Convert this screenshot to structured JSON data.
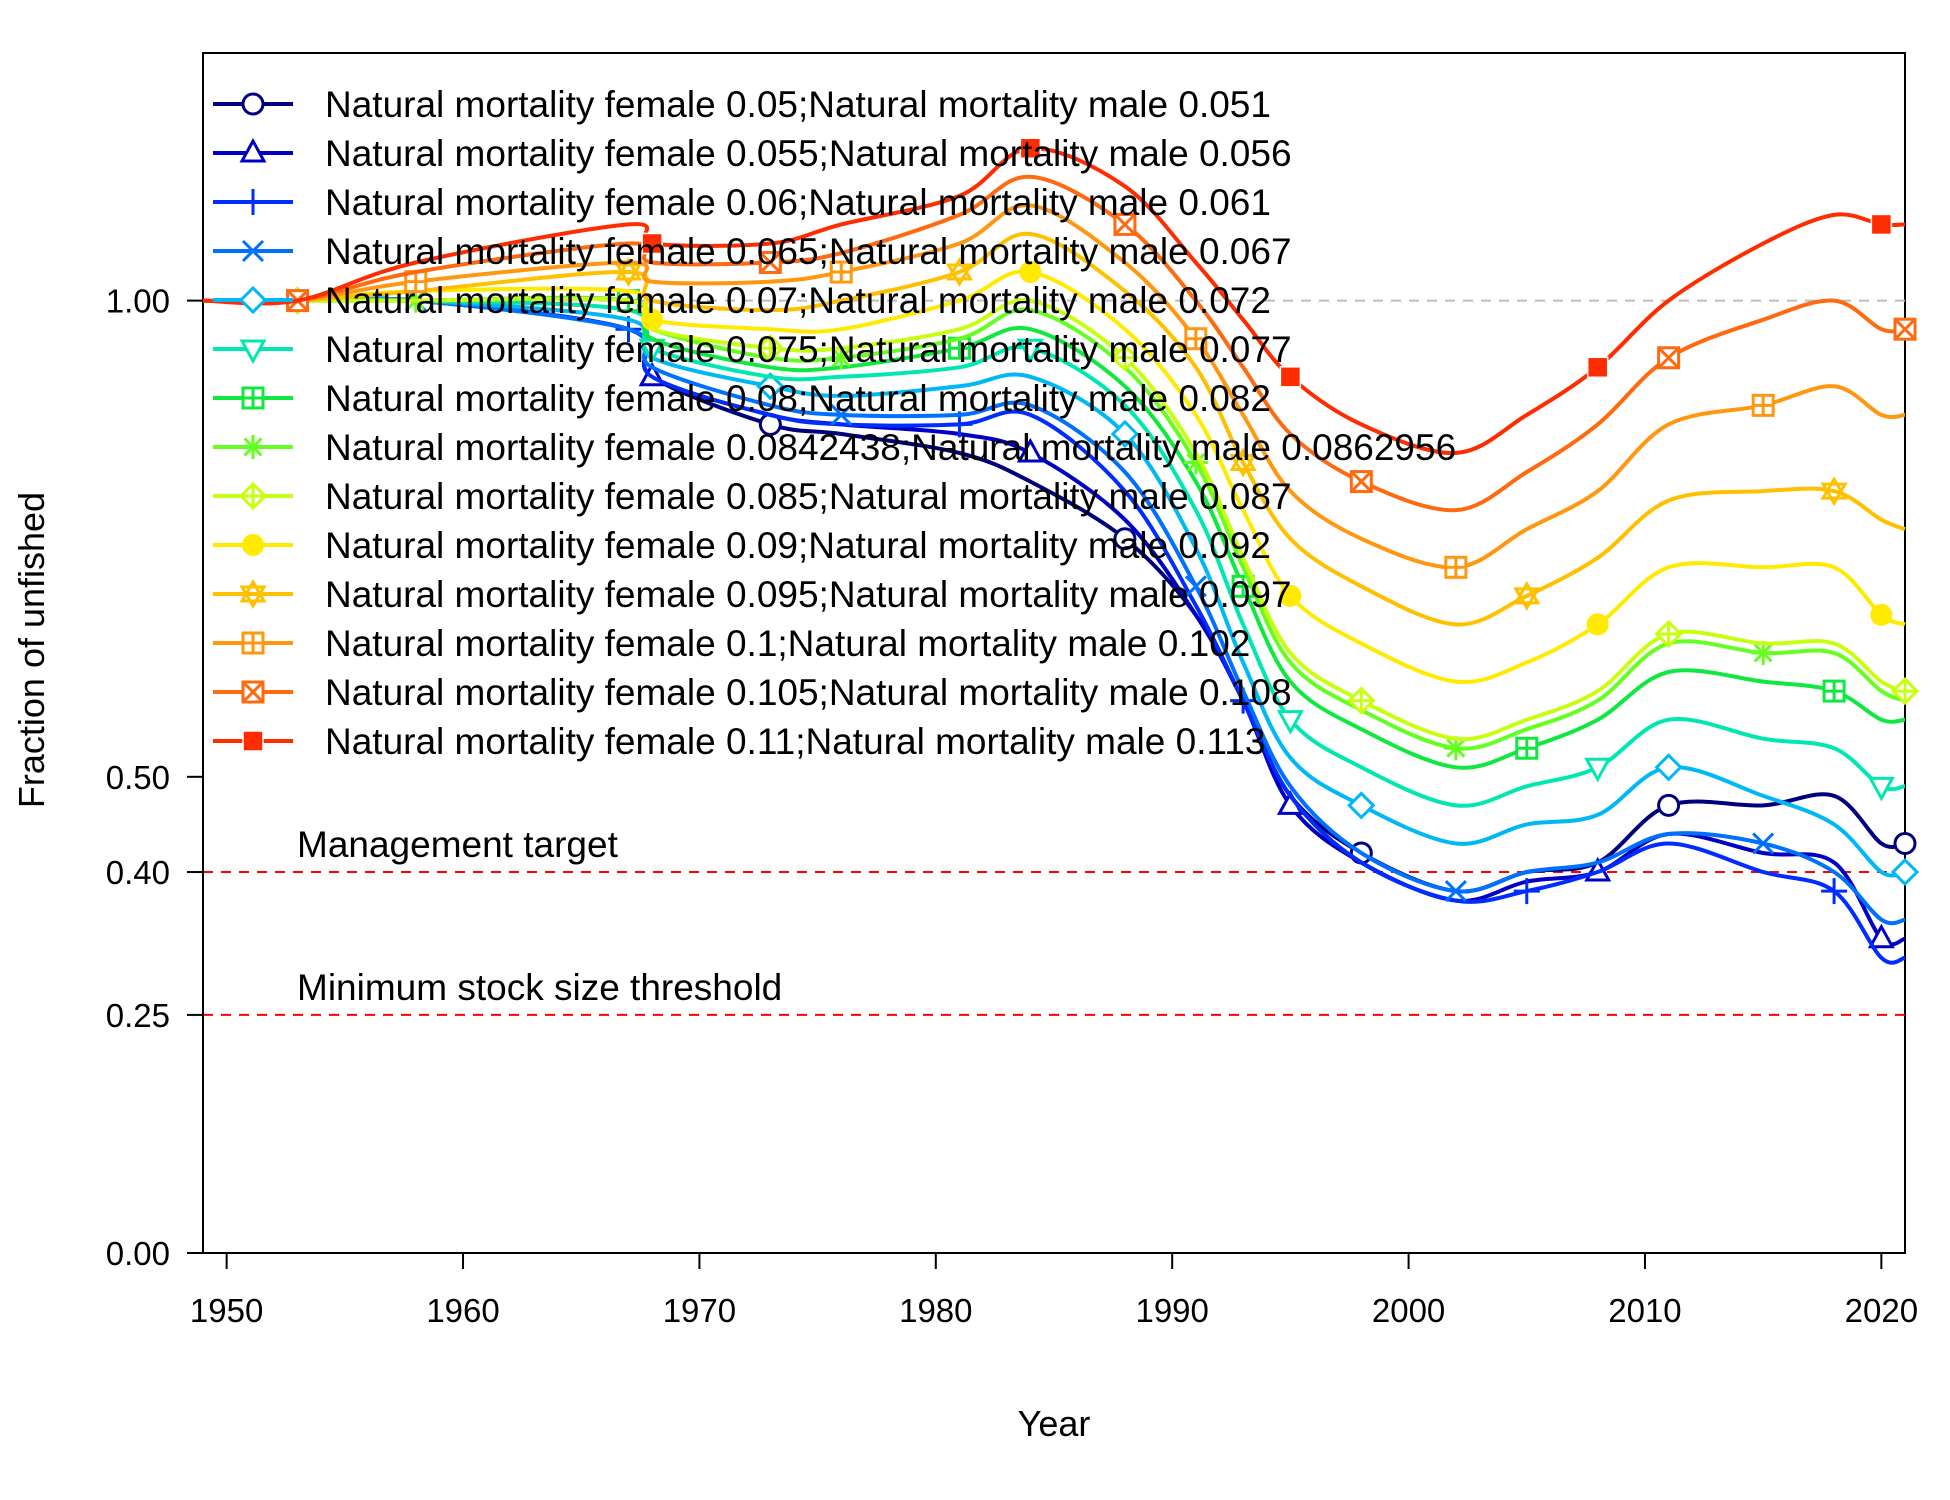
{
  "chart_data": {
    "type": "line",
    "xlabel": "Year",
    "ylabel": "Fraction of unfished",
    "xlim": [
      1949,
      2021
    ],
    "ylim": [
      0,
      1.26
    ],
    "x_ticks": [
      1950,
      1960,
      1970,
      1980,
      1990,
      2000,
      2010,
      2020
    ],
    "y_ticks": [
      {
        "value": 0.0,
        "label": "0.00"
      },
      {
        "value": 0.25,
        "label": "0.25"
      },
      {
        "value": 0.4,
        "label": "0.40"
      },
      {
        "value": 0.5,
        "label": "0.50"
      },
      {
        "value": 1.0,
        "label": "1.00"
      }
    ],
    "reference_lines": [
      {
        "label": "",
        "value": 1.0,
        "color": "#bebebe",
        "style": "dashed"
      },
      {
        "label": "Management target",
        "value": 0.4,
        "color": "#ff0000",
        "style": "dashed"
      },
      {
        "label": "Minimum stock size threshold",
        "value": 0.25,
        "color": "#ff0000",
        "style": "dashed"
      }
    ],
    "legend_position": "top-left",
    "grid": false,
    "x": [
      1953,
      1958,
      1967,
      1968,
      1973,
      1976,
      1981,
      1984,
      1988,
      1991,
      1993,
      1995,
      1998,
      2002,
      2005,
      2008,
      2011,
      2015,
      2018,
      2020,
      2021
    ],
    "series": [
      {
        "name": "Natural mortality female 0.05;Natural mortality male 0.051",
        "color": "#00007f",
        "marker": "circle",
        "values": [
          1.0,
          1.0,
          0.97,
          0.92,
          0.87,
          0.86,
          0.84,
          0.81,
          0.75,
          0.67,
          0.58,
          0.48,
          0.42,
          0.38,
          0.4,
          0.41,
          0.47,
          0.47,
          0.48,
          0.43,
          0.43
        ]
      },
      {
        "name": "Natural mortality female 0.055;Natural mortality male 0.056",
        "color": "#0000c4",
        "marker": "triangle",
        "values": [
          1.0,
          1.0,
          0.97,
          0.92,
          0.88,
          0.87,
          0.86,
          0.84,
          0.77,
          0.67,
          0.58,
          0.47,
          0.41,
          0.37,
          0.39,
          0.4,
          0.44,
          0.42,
          0.41,
          0.33,
          0.33
        ]
      },
      {
        "name": "Natural mortality female 0.06;Natural mortality male 0.061",
        "color": "#002cff",
        "marker": "plus",
        "values": [
          1.0,
          1.0,
          0.97,
          0.92,
          0.88,
          0.87,
          0.87,
          0.88,
          0.8,
          0.68,
          0.58,
          0.48,
          0.41,
          0.37,
          0.38,
          0.4,
          0.43,
          0.4,
          0.38,
          0.31,
          0.31
        ]
      },
      {
        "name": "Natural mortality female 0.065;Natural mortality male 0.067",
        "color": "#0070ff",
        "marker": "cross",
        "values": [
          1.0,
          1.0,
          0.97,
          0.93,
          0.89,
          0.88,
          0.88,
          0.89,
          0.82,
          0.7,
          0.59,
          0.49,
          0.42,
          0.38,
          0.4,
          0.41,
          0.44,
          0.43,
          0.4,
          0.35,
          0.35
        ]
      },
      {
        "name": "Natural mortality female 0.07;Natural mortality male 0.072",
        "color": "#00b8f5",
        "marker": "diamond",
        "values": [
          1.0,
          1.0,
          0.98,
          0.94,
          0.91,
          0.9,
          0.91,
          0.92,
          0.86,
          0.74,
          0.62,
          0.52,
          0.47,
          0.43,
          0.45,
          0.46,
          0.51,
          0.48,
          0.45,
          0.4,
          0.4
        ]
      },
      {
        "name": "Natural mortality female 0.075;Natural mortality male 0.077",
        "color": "#00e8b0",
        "marker": "triangle-down",
        "values": [
          1.0,
          1.0,
          0.99,
          0.95,
          0.92,
          0.92,
          0.93,
          0.95,
          0.89,
          0.78,
          0.66,
          0.56,
          0.51,
          0.47,
          0.49,
          0.51,
          0.56,
          0.54,
          0.53,
          0.49,
          0.49
        ]
      },
      {
        "name": "Natural mortality female 0.08;Natural mortality male 0.082",
        "color": "#10e840",
        "marker": "square-plus",
        "values": [
          1.0,
          1.0,
          1.0,
          0.96,
          0.93,
          0.93,
          0.95,
          0.97,
          0.91,
          0.81,
          0.7,
          0.6,
          0.55,
          0.51,
          0.53,
          0.56,
          0.61,
          0.6,
          0.59,
          0.56,
          0.56
        ]
      },
      {
        "name": "Natural mortality female 0.0842438;Natural mortality male 0.0862956",
        "color": "#64ff20",
        "marker": "asterisk",
        "values": [
          1.0,
          1.0,
          1.0,
          0.97,
          0.94,
          0.94,
          0.96,
          0.99,
          0.93,
          0.83,
          0.72,
          0.62,
          0.57,
          0.53,
          0.55,
          0.58,
          0.64,
          0.63,
          0.63,
          0.59,
          0.58
        ]
      },
      {
        "name": "Natural mortality female 0.085;Natural mortality male 0.087",
        "color": "#c8ff10",
        "marker": "diamond-plus",
        "values": [
          1.0,
          1.0,
          1.0,
          0.97,
          0.95,
          0.95,
          0.97,
          1.0,
          0.94,
          0.84,
          0.73,
          0.63,
          0.58,
          0.54,
          0.56,
          0.59,
          0.65,
          0.64,
          0.64,
          0.6,
          0.59
        ]
      },
      {
        "name": "Natural mortality female 0.09;Natural mortality male 0.092",
        "color": "#ffea00",
        "marker": "filled-circle",
        "values": [
          1.0,
          1.01,
          1.01,
          0.98,
          0.97,
          0.97,
          1.0,
          1.03,
          0.97,
          0.88,
          0.78,
          0.69,
          0.64,
          0.6,
          0.62,
          0.66,
          0.72,
          0.72,
          0.72,
          0.67,
          0.66
        ]
      },
      {
        "name": "Natural mortality female 0.095;Natural mortality male 0.097",
        "color": "#ffc000",
        "marker": "star-of-david",
        "values": [
          1.0,
          1.01,
          1.03,
          1.0,
          0.99,
          1.0,
          1.03,
          1.07,
          1.01,
          0.93,
          0.83,
          0.75,
          0.7,
          0.66,
          0.69,
          0.73,
          0.79,
          0.8,
          0.8,
          0.77,
          0.76
        ]
      },
      {
        "name": "Natural mortality female 0.1;Natural mortality male 0.102",
        "color": "#ff9810",
        "marker": "square-plus",
        "values": [
          1.0,
          1.02,
          1.04,
          1.02,
          1.02,
          1.03,
          1.06,
          1.1,
          1.04,
          0.96,
          0.88,
          0.8,
          0.75,
          0.72,
          0.76,
          0.8,
          0.87,
          0.89,
          0.91,
          0.88,
          0.88
        ]
      },
      {
        "name": "Natural mortality female 0.105;Natural mortality male 0.108",
        "color": "#ff6a10",
        "marker": "square-cross",
        "values": [
          1.0,
          1.03,
          1.06,
          1.04,
          1.04,
          1.05,
          1.09,
          1.13,
          1.08,
          1.0,
          0.93,
          0.86,
          0.81,
          0.78,
          0.82,
          0.87,
          0.94,
          0.98,
          1.0,
          0.97,
          0.97
        ]
      },
      {
        "name": "Natural mortality female 0.11;Natural mortality male 0.113",
        "color": "#ff2c00",
        "marker": "filled-square",
        "values": [
          1.0,
          1.04,
          1.08,
          1.06,
          1.06,
          1.08,
          1.11,
          1.16,
          1.12,
          1.04,
          0.98,
          0.92,
          0.87,
          0.84,
          0.88,
          0.93,
          1.0,
          1.06,
          1.09,
          1.08,
          1.08
        ]
      }
    ]
  }
}
